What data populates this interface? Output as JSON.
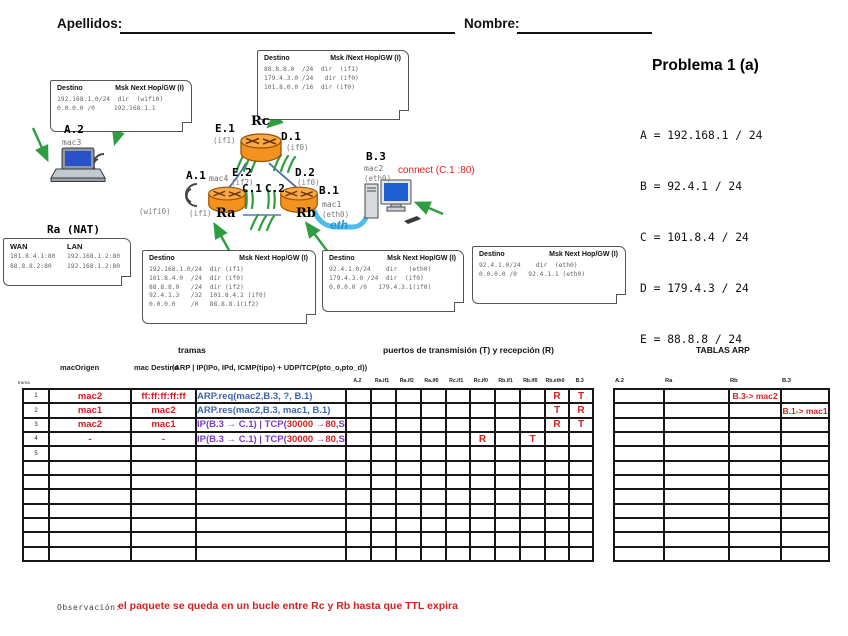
{
  "header": {
    "apellidos_label": "Apellidos:",
    "nombre_label": "Nombre:"
  },
  "problem": {
    "title": "Problema 1 (a)",
    "definitions": [
      "A = 192.168.1 / 24",
      "B = 92.4.1 / 24",
      "C = 101.8.4 / 24",
      "D = 179.4.3 / 24",
      "E = 88.8.8 / 24"
    ]
  },
  "diagram": {
    "routers": {
      "ra": "Ra",
      "rb": "Rb",
      "rc": "Rc"
    },
    "labels": {
      "e1": "E.1",
      "e1_if": "(if1)",
      "d1": "D.1",
      "d1_if": "(if0)",
      "a2": "A.2",
      "mac3": "mac3",
      "wifi0": "(wifi0)",
      "a1": "A.1",
      "mac4": "mac4",
      "a1_if": "(if1)",
      "e2": "E.2",
      "e2_if": "(if2)",
      "c1": "C.1",
      "c2": "C.2",
      "d2": "D.2",
      "d2_if": "(if0)",
      "b1": "B.1",
      "mac1": "mac1",
      "b1_if": "(eth0)",
      "b3": "B.3",
      "mac2": "mac2",
      "b3_if": "(eth0)",
      "eth": "eth",
      "connect_note": "connect (C.1 :80)"
    },
    "routing_boxes": {
      "rc": {
        "dest_header": "Destino",
        "msk_header": "Msk /Next Hop/GW (I)",
        "rows": [
          "88.8.8.0  /24  dir  (if1)",
          "179.4.3.0 /24   dir (if0)",
          "101.8.0.0 /16  dir (if0)"
        ]
      },
      "a2": {
        "dest_header": "Destino",
        "msk_header": "Msk  Next Hop/GW (I)",
        "rows": [
          "192.168.1.0/24  dir  (wifi0)",
          "0.0.0.0 /0     192.168.1.1"
        ]
      },
      "ra": {
        "dest_header": "Destino",
        "msk_header": "Msk  Next Hop/GW (I)",
        "rows": [
          "192.168.1.0/24  dir (if1)",
          "101.8.4.0  /24  dir (if0)",
          "88.8.8.0   /24  dir (if2)",
          "92.4.1.3   /32  101.8.4.2 (if0)",
          "0.0.0.0    /0   88.8.8.1(if2)"
        ]
      },
      "rb": {
        "dest_header": "Destino",
        "msk_header": "Msk  Next Hop/GW (I)",
        "rows": [
          "92.4.1.0/24    dir   (eth0)",
          "179.4.3.0 /24  dir  (if0)",
          "0.0.0.0 /0   179.4.3.1(if0)"
        ]
      },
      "b3": {
        "dest_header": "Destino",
        "msk_header": "Msk  Next Hop/GW (I)",
        "rows": [
          "92.4.1.0/24    dir  (eth0)",
          "0.0.0.0 /0   92.4.1.1 (eth0)"
        ]
      }
    },
    "nat": {
      "title": "Ra (NAT)",
      "wan_header": "WAN",
      "lan_header": "LAN",
      "rows": [
        [
          "101.8.4.1:80",
          "192.168.1.2:80"
        ],
        [
          "88.8.8.2:80",
          "192.168.1.2:80"
        ]
      ]
    }
  },
  "worksheet": {
    "titles": {
      "tramas": "tramas",
      "puertos": "puertos de transmisión (T) y recepción (R)",
      "arp": "TABLAS ARP"
    },
    "headers": {
      "trama": "trama",
      "mac_origen": "macOrigen",
      "mac_destino": "mac Destino",
      "payload": "(ARP | IP(IPo, IPd, ICMP(tipo) + UDP/TCP(pto_o,pto_d))"
    },
    "port_columns": [
      "A.2",
      "Ra.if1",
      "Ra.if2",
      "Ra.if0",
      "Rc.if1",
      "Rc.if0",
      "Rb.if1",
      "Rb.if0",
      "Rb.eth0",
      "B.3"
    ],
    "row_count": 12,
    "rows": [
      {
        "num": "1",
        "mac_o": "mac2",
        "mac_d": "ff:ff:ff:ff:ff",
        "desc_parts": [
          {
            "t": "ARP.req(mac2,B.3, ?, B.1)",
            "c": "blue"
          }
        ],
        "ports": {
          "Rb.eth0": "R",
          "B.3": "T"
        }
      },
      {
        "num": "2",
        "mac_o": "mac1",
        "mac_d": "mac2",
        "desc_parts": [
          {
            "t": "ARP.res(mac2,B.3, mac1, B.1)",
            "c": "blue"
          }
        ],
        "ports": {
          "Rb.eth0": "T",
          "B.3": "R"
        }
      },
      {
        "num": "3",
        "mac_o": "mac2",
        "mac_d": "mac1",
        "desc_parts": [
          {
            "t": "IP(B.3 → C.1) | TCP(",
            "c": "purple"
          },
          {
            "t": "30000",
            "c": "red"
          },
          {
            "t": " →",
            "c": "purple"
          },
          {
            "t": "80",
            "c": "red"
          },
          {
            "t": ",SYN)",
            "c": "purple"
          }
        ],
        "ports": {
          "Rb.eth0": "R",
          "B.3": "T"
        }
      },
      {
        "num": "4",
        "mac_o": "-",
        "mac_d": "-",
        "desc_parts": [
          {
            "t": "IP(B.3 → C.1) | TCP(",
            "c": "purple"
          },
          {
            "t": "30000",
            "c": "red"
          },
          {
            "t": " →",
            "c": "purple"
          },
          {
            "t": "80",
            "c": "red"
          },
          {
            "t": ",SYN)",
            "c": "purple"
          }
        ],
        "ports": {
          "Rc.if0": "R",
          "Rb.if0": "T"
        }
      },
      {
        "num": "5"
      }
    ],
    "arp_columns": [
      "A.2",
      "Ra",
      "Rb",
      "B.3"
    ],
    "arp_row_count": 12,
    "arp_entries": [
      {
        "row": 0,
        "col": "Rb",
        "text": "B.3-> mac2"
      },
      {
        "row": 1,
        "col": "B.3",
        "text": "B.1-> mac1"
      }
    ]
  },
  "footer": {
    "observacion_label": "Observación:",
    "observacion_text": "el paquete se queda en un bucle entre Rc y Rb hasta que TTL expira"
  },
  "colors": {
    "red": "#d42020",
    "blue": "#3a67b0",
    "purple": "#7b3dc4",
    "green": "#2f9e41",
    "router_orange": "#f5921e",
    "eth_blue": "#4fbde9",
    "link_blue": "#4a6fa5"
  }
}
